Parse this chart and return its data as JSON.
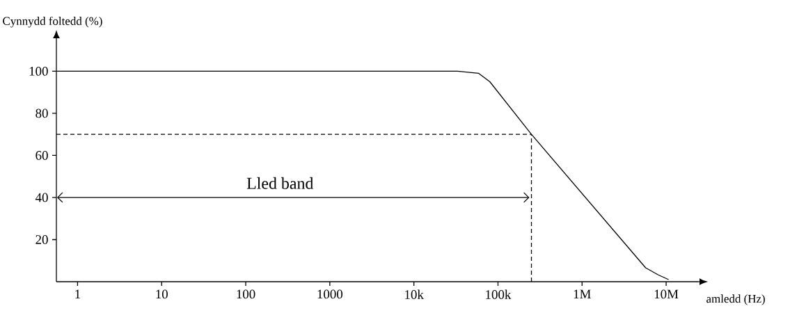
{
  "chart_data": {
    "type": "line",
    "xlabel": "amledd (Hz)",
    "ylabel": "Cynnydd foltedd (%)",
    "log": "x",
    "xlim": [
      0.56,
      24000000
    ],
    "ylim": [
      0,
      115
    ],
    "xticks": [
      {
        "value": 1,
        "label": "1"
      },
      {
        "value": 10,
        "label": "10"
      },
      {
        "value": 100,
        "label": "100"
      },
      {
        "value": 1000,
        "label": "1000"
      },
      {
        "value": 10000,
        "label": "10k"
      },
      {
        "value": 100000,
        "label": "100k"
      },
      {
        "value": 1000000,
        "label": "1M"
      },
      {
        "value": 10000000,
        "label": "10M"
      }
    ],
    "yticks": [
      20,
      40,
      60,
      80,
      100
    ],
    "marker": "none",
    "line_style": "solid",
    "x": [
      0.56,
      33000,
      59000,
      80000,
      250000,
      5700000,
      8000000,
      10700000
    ],
    "series": [
      {
        "color": "#000000",
        "values": [
          100,
          100,
          99,
          95,
          70,
          6.6,
          3.3,
          1
        ]
      }
    ],
    "ref_lines": [
      {
        "axis": "y",
        "value": 70,
        "line_style": "dashed"
      },
      {
        "axis": "x",
        "value": 250000,
        "line_style": "dashed"
      }
    ],
    "annotations": [
      "Lled band"
    ]
  }
}
